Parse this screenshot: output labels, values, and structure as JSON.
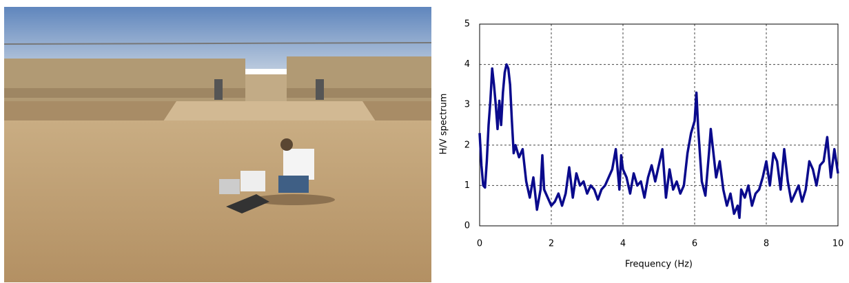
{
  "chart_data": {
    "type": "line",
    "x_label": "Frequency (Hz)",
    "y_label": "H/V spectrum",
    "x": [
      0,
      0.05,
      0.1,
      0.15,
      0.2,
      0.25,
      0.3,
      0.35,
      0.4,
      0.45,
      0.5,
      0.55,
      0.6,
      0.65,
      0.7,
      0.75,
      0.8,
      0.85,
      0.9,
      0.95,
      1.0,
      1.1,
      1.2,
      1.3,
      1.4,
      1.5,
      1.6,
      1.7,
      1.75,
      1.8,
      1.9,
      2.0,
      2.1,
      2.2,
      2.3,
      2.4,
      2.5,
      2.6,
      2.7,
      2.8,
      2.9,
      3.0,
      3.1,
      3.2,
      3.3,
      3.4,
      3.5,
      3.6,
      3.7,
      3.8,
      3.9,
      3.95,
      4.0,
      4.1,
      4.2,
      4.3,
      4.4,
      4.5,
      4.6,
      4.7,
      4.8,
      4.9,
      5.0,
      5.1,
      5.2,
      5.3,
      5.4,
      5.5,
      5.6,
      5.7,
      5.8,
      5.9,
      6.0,
      6.05,
      6.1,
      6.2,
      6.3,
      6.4,
      6.45,
      6.5,
      6.6,
      6.7,
      6.8,
      6.9,
      7.0,
      7.1,
      7.2,
      7.25,
      7.3,
      7.4,
      7.5,
      7.6,
      7.7,
      7.8,
      7.9,
      8.0,
      8.1,
      8.2,
      8.3,
      8.4,
      8.5,
      8.6,
      8.7,
      8.8,
      8.9,
      9.0,
      9.1,
      9.2,
      9.3,
      9.4,
      9.5,
      9.6,
      9.7,
      9.8,
      9.9,
      10.0
    ],
    "series": [
      {
        "name": "H/V spectrum",
        "color": "#0a0a8c",
        "values": [
          2.3,
          1.5,
          1.0,
          0.95,
          1.6,
          2.5,
          3.1,
          3.9,
          3.5,
          3.0,
          2.4,
          3.1,
          2.5,
          3.3,
          3.8,
          4.0,
          3.9,
          3.5,
          2.6,
          1.8,
          2.0,
          1.7,
          1.9,
          1.1,
          0.7,
          1.2,
          0.4,
          0.9,
          1.75,
          0.9,
          0.7,
          0.5,
          0.6,
          0.8,
          0.5,
          0.8,
          1.45,
          0.7,
          1.3,
          1.0,
          1.1,
          0.8,
          1.0,
          0.9,
          0.65,
          0.9,
          1.0,
          1.2,
          1.4,
          1.9,
          0.9,
          1.75,
          1.4,
          1.2,
          0.8,
          1.3,
          1.0,
          1.1,
          0.7,
          1.2,
          1.5,
          1.1,
          1.5,
          1.9,
          0.7,
          1.4,
          0.9,
          1.1,
          0.8,
          1.0,
          1.8,
          2.3,
          2.6,
          3.3,
          2.4,
          1.1,
          0.75,
          1.8,
          2.4,
          2.0,
          1.2,
          1.6,
          0.9,
          0.5,
          0.8,
          0.3,
          0.5,
          0.2,
          0.9,
          0.7,
          1.0,
          0.5,
          0.8,
          0.9,
          1.2,
          1.6,
          1.0,
          1.8,
          1.6,
          0.9,
          1.9,
          1.1,
          0.6,
          0.8,
          1.0,
          0.6,
          0.9,
          1.6,
          1.4,
          1.0,
          1.5,
          1.6,
          2.2,
          1.2,
          1.9,
          1.3
        ]
      }
    ],
    "xlim": [
      0,
      10
    ],
    "ylim": [
      0,
      5
    ],
    "xticks": [
      0,
      2,
      4,
      6,
      8,
      10
    ],
    "yticks": [
      0,
      1,
      2,
      3,
      4,
      5
    ],
    "grid": true
  }
}
